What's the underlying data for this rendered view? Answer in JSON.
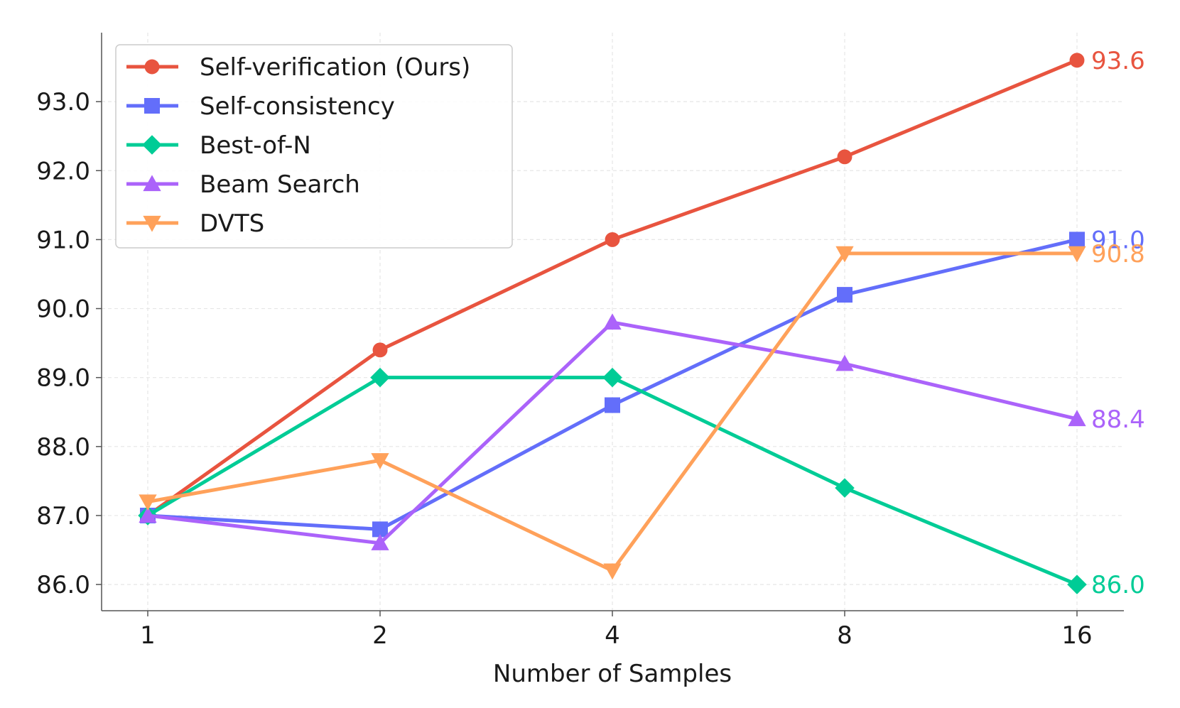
{
  "chart_data": {
    "type": "line",
    "title": "",
    "xlabel": "Number of Samples",
    "ylabel": "",
    "x": [
      "1",
      "2",
      "4",
      "8",
      "16"
    ],
    "ylim": [
      85.62,
      94.0
    ],
    "yticks": [
      "86.0",
      "87.0",
      "88.0",
      "89.0",
      "90.0",
      "91.0",
      "92.0",
      "93.0"
    ],
    "grid": true,
    "legend_position": "top-left",
    "series": [
      {
        "name": "Self-verification (Ours)",
        "values": [
          87.0,
          89.4,
          91.0,
          92.2,
          93.6
        ],
        "color": "#e8543f",
        "marker": "circle",
        "end_label": "93.6"
      },
      {
        "name": "Self-consistency",
        "values": [
          87.0,
          86.8,
          88.6,
          90.2,
          91.0
        ],
        "color": "#636efa",
        "marker": "square",
        "end_label": "91.0"
      },
      {
        "name": "Best-of-N",
        "values": [
          87.0,
          89.0,
          89.0,
          87.4,
          86.0
        ],
        "color": "#00cc96",
        "marker": "diamond",
        "end_label": "86.0"
      },
      {
        "name": "Beam Search",
        "values": [
          87.0,
          86.6,
          89.8,
          89.2,
          88.4
        ],
        "color": "#ab63fa",
        "marker": "triangle-up",
        "end_label": "88.4"
      },
      {
        "name": "DVTS",
        "values": [
          87.2,
          87.8,
          86.2,
          90.8,
          90.8
        ],
        "color": "#ffa15a",
        "marker": "triangle-down",
        "end_label": "90.8"
      }
    ]
  }
}
